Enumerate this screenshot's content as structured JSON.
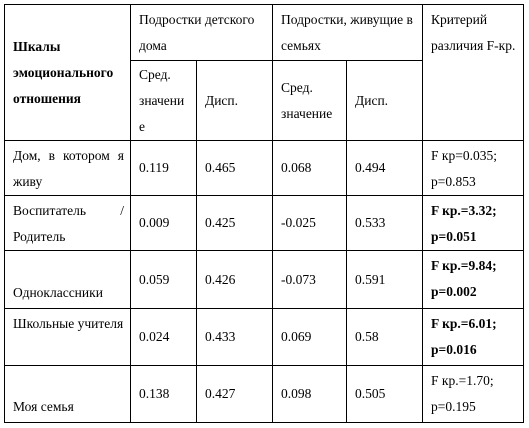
{
  "header": {
    "scale": "Шкалы эмоционального отношения",
    "group1": "Подростки детского дома",
    "group2": "Подростки, живущие в семьях",
    "criterion": "Критерий различия F-кр.",
    "mean1": "Сред. значение",
    "disp1": "Дисп.",
    "mean2": "Сред. значение",
    "disp2": "Дисп."
  },
  "rows": [
    {
      "label": "Дом, в котором я живу",
      "cells": [
        "0.119",
        "0.465",
        "0.068",
        "0.494"
      ],
      "criterion": "F кр=0.035; p=0.853",
      "bold": false
    },
    {
      "label": "Воспитатель /Родитель",
      "cells": [
        "0.009",
        "0.425",
        "-0.025",
        "0.533"
      ],
      "criterion": "F кр.=3.32; p=0.051",
      "bold": true
    },
    {
      "label": "Одноклассники",
      "cells": [
        "0.059",
        "0.426",
        "-0.073",
        "0.591"
      ],
      "criterion": "F кр.=9.84; p=0.002",
      "bold": true
    },
    {
      "label": "Школьные учителя",
      "cells": [
        "0.024",
        "0.433",
        "0.069",
        "0.58"
      ],
      "criterion": "F кр.=6.01; p=0.016",
      "bold": true
    },
    {
      "label": "Моя семья",
      "cells": [
        "0.138",
        "0.427",
        "0.098",
        "0.505"
      ],
      "criterion": "F кр.=1.70; p=0.195",
      "bold": false
    }
  ]
}
